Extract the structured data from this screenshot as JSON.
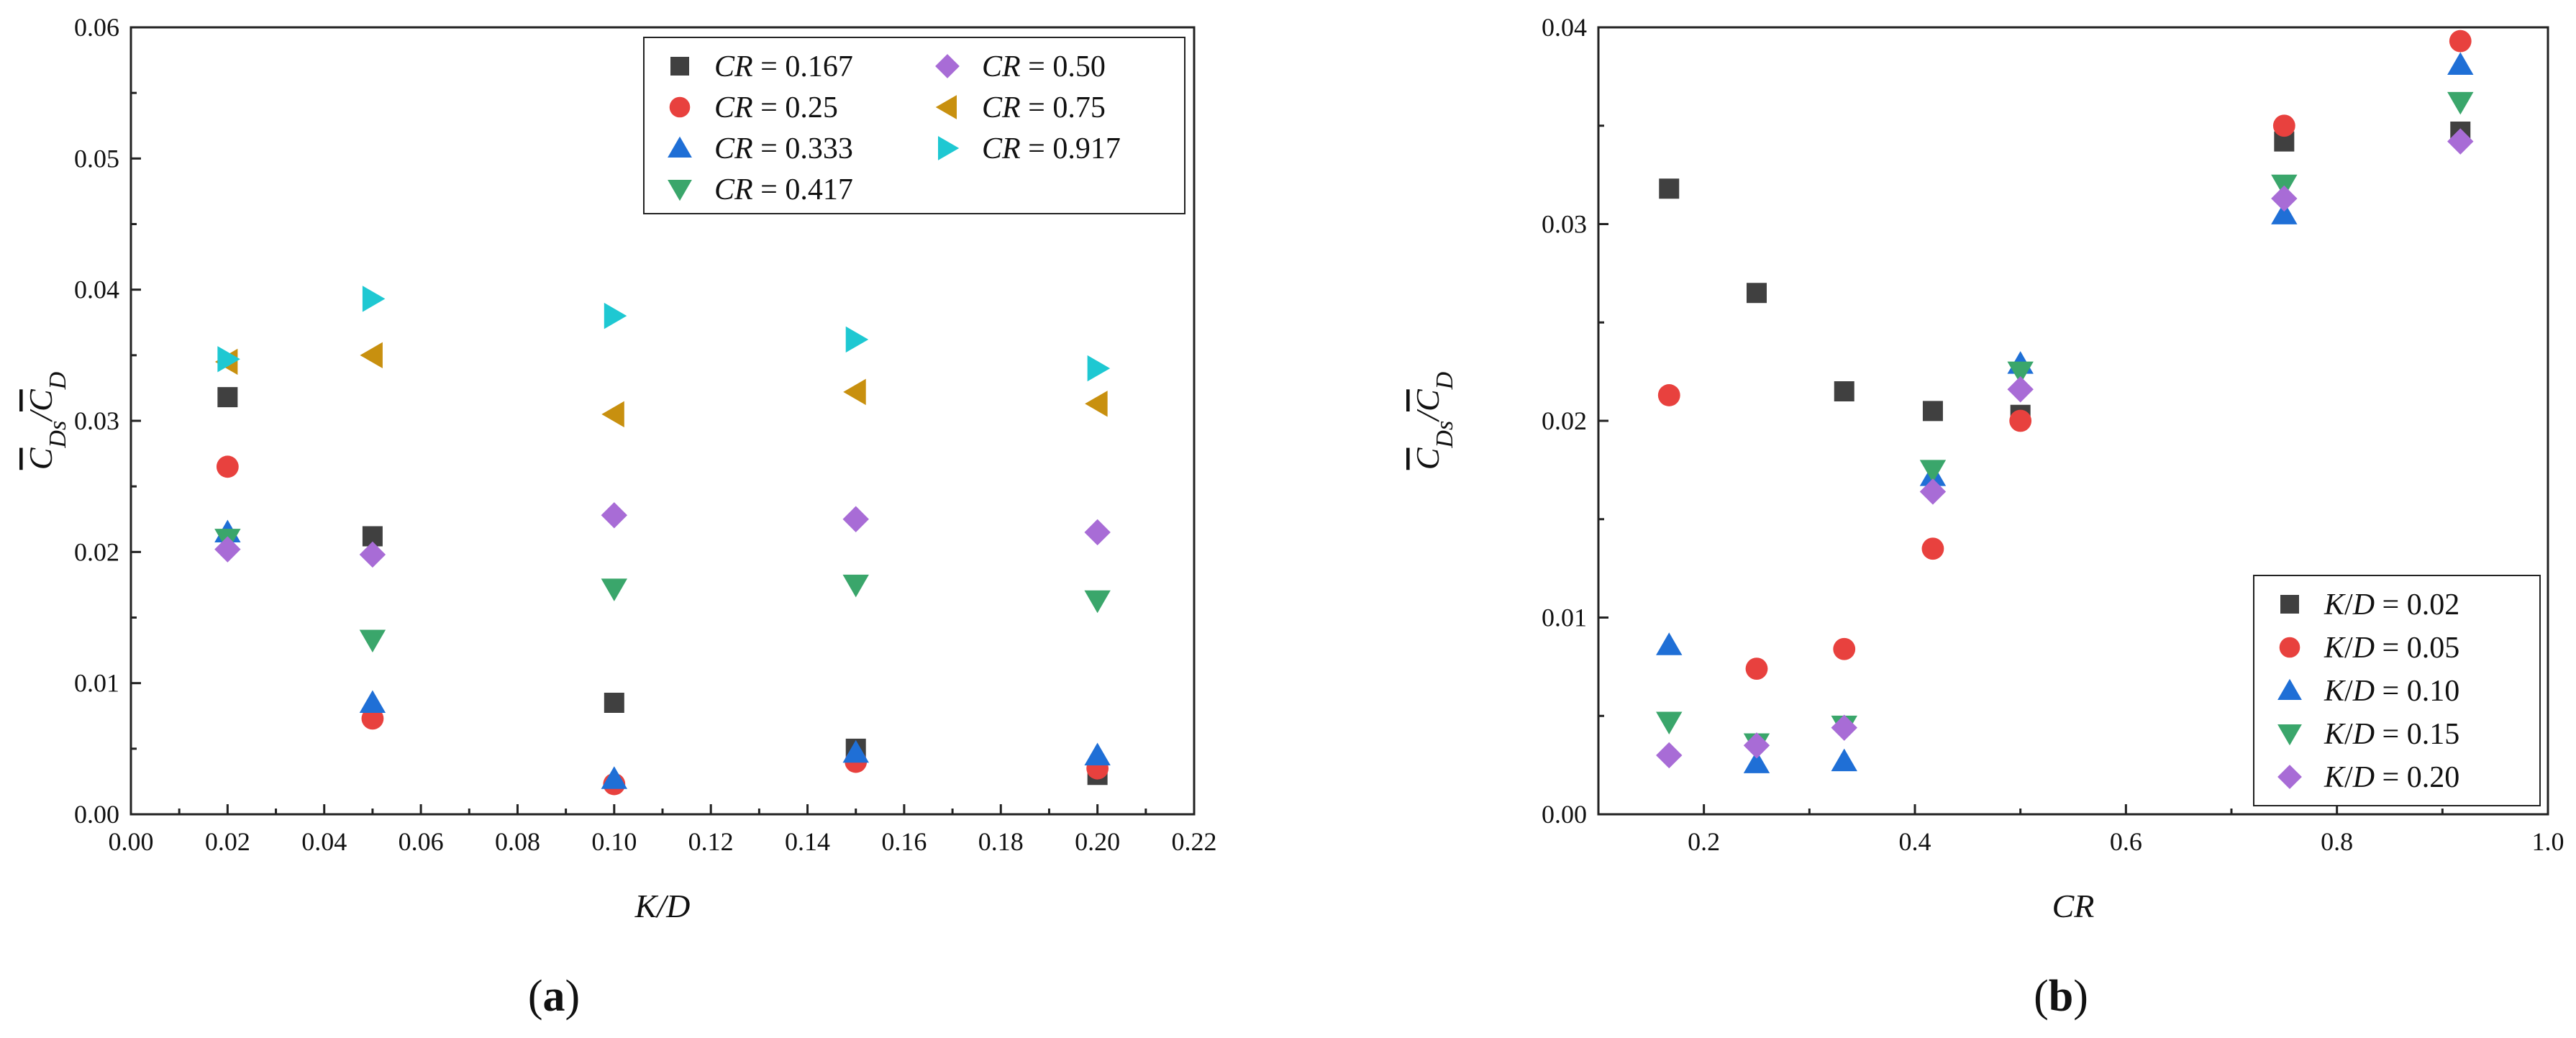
{
  "chart_data": [
    {
      "type": "scatter",
      "panel_label_open": "(",
      "panel_label_letter": "a",
      "panel_label_close": ")",
      "xlabel": "K/D",
      "ylabel": "C̄Ds/C̄D",
      "xlim": [
        0,
        0.22
      ],
      "ylim": [
        0,
        0.06
      ],
      "xticks": [
        "0.00",
        "0.02",
        "0.04",
        "0.06",
        "0.08",
        "0.10",
        "0.12",
        "0.14",
        "0.16",
        "0.18",
        "0.20",
        "0.22"
      ],
      "yticks": [
        "0.00",
        "0.01",
        "0.02",
        "0.03",
        "0.04",
        "0.05",
        "0.06"
      ],
      "legend_position": "top-right",
      "x": [
        0.02,
        0.05,
        0.1,
        0.15,
        0.2
      ],
      "series": [
        {
          "name": "CR = 0.167",
          "var": "CR",
          "eq": " = ",
          "val": "0.167",
          "marker": "square",
          "color": "#404040",
          "values": [
            0.0318,
            0.0212,
            0.0085,
            0.005,
            0.003
          ]
        },
        {
          "name": "CR = 0.25",
          "var": "CR",
          "eq": " = ",
          "val": "0.25",
          "marker": "circle",
          "color": "#e8413e",
          "values": [
            0.0265,
            0.0073,
            0.0023,
            0.004,
            0.0035
          ]
        },
        {
          "name": "CR = 0.333",
          "var": "CR",
          "eq": " = ",
          "val": "0.333",
          "marker": "triangle-up",
          "color": "#1f6fd6",
          "values": [
            0.0215,
            0.0085,
            0.0027,
            0.0047,
            0.0045
          ]
        },
        {
          "name": "CR = 0.417",
          "var": "CR",
          "eq": " = ",
          "val": "0.417",
          "marker": "triangle-down",
          "color": "#3aa66b",
          "values": [
            0.021,
            0.0133,
            0.0172,
            0.0175,
            0.0163
          ]
        },
        {
          "name": "CR = 0.50",
          "var": "CR",
          "eq": " = ",
          "val": "0.50",
          "marker": "diamond",
          "color": "#a86cd6",
          "values": [
            0.0202,
            0.0198,
            0.0228,
            0.0225,
            0.0215
          ]
        },
        {
          "name": "CR = 0.75",
          "var": "CR",
          "eq": " = ",
          "val": "0.75",
          "marker": "triangle-left",
          "color": "#c8900f",
          "values": [
            0.0345,
            0.035,
            0.0305,
            0.0322,
            0.0313
          ]
        },
        {
          "name": "CR = 0.917",
          "var": "CR",
          "eq": " = ",
          "val": "0.917",
          "marker": "triangle-right",
          "color": "#1ec8d2",
          "values": [
            0.0347,
            0.0393,
            0.038,
            0.0362,
            0.034
          ]
        }
      ]
    },
    {
      "type": "scatter",
      "panel_label_open": "(",
      "panel_label_letter": "b",
      "panel_label_close": ")",
      "xlabel": "CR",
      "ylabel": "C̄Ds/C̄D",
      "xlim": [
        0.1,
        1.0
      ],
      "ylim": [
        0,
        0.04
      ],
      "xticks": [
        "0.2",
        "0.4",
        "0.6",
        "0.8",
        "1.0"
      ],
      "yticks": [
        "0.00",
        "0.01",
        "0.02",
        "0.03",
        "0.04"
      ],
      "legend_position": "bottom-right",
      "x": [
        0.167,
        0.25,
        0.333,
        0.417,
        0.5,
        0.75,
        0.917
      ],
      "series": [
        {
          "name": "K/D = 0.02",
          "var": "K/D",
          "eq": " = ",
          "val": "0.02",
          "marker": "square",
          "color": "#404040",
          "values": [
            0.0318,
            0.0265,
            0.0215,
            0.0205,
            0.0203,
            0.0342,
            0.0347
          ]
        },
        {
          "name": "K/D = 0.05",
          "var": "K/D",
          "eq": " = ",
          "val": "0.05",
          "marker": "circle",
          "color": "#e8413e",
          "values": [
            0.0213,
            0.0074,
            0.0084,
            0.0135,
            0.02,
            0.035,
            0.0393
          ]
        },
        {
          "name": "K/D = 0.10",
          "var": "K/D",
          "eq": " = ",
          "val": "0.10",
          "marker": "triangle-up",
          "color": "#1f6fd6",
          "values": [
            0.0086,
            0.0026,
            0.0027,
            0.0172,
            0.0229,
            0.0305,
            0.0381
          ]
        },
        {
          "name": "K/D = 0.15",
          "var": "K/D",
          "eq": " = ",
          "val": "0.15",
          "marker": "triangle-down",
          "color": "#3aa66b",
          "values": [
            0.0047,
            0.0036,
            0.0045,
            0.0175,
            0.0225,
            0.032,
            0.0362
          ]
        },
        {
          "name": "K/D = 0.20",
          "var": "K/D",
          "eq": " = ",
          "val": "0.20",
          "marker": "diamond",
          "color": "#a86cd6",
          "values": [
            0.003,
            0.0035,
            0.0044,
            0.0164,
            0.0216,
            0.0313,
            0.0342
          ]
        }
      ]
    }
  ]
}
